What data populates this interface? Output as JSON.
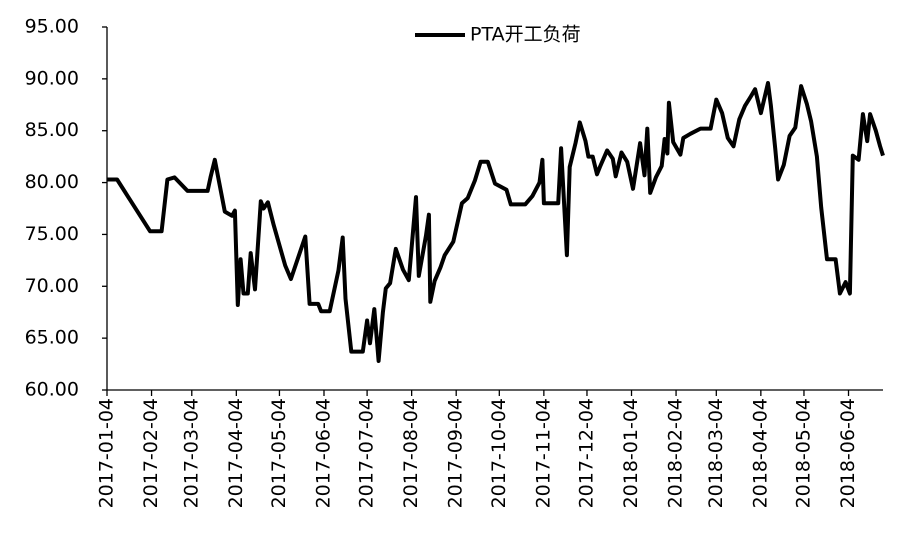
{
  "chart_data": {
    "type": "line",
    "series": [
      {
        "name": "PTA开工负荷",
        "color": "#000000",
        "x": [
          "2017-01-04",
          "2017-01-11",
          "2017-02-03",
          "2017-02-11",
          "2017-02-15",
          "2017-02-20",
          "2017-03-01",
          "2017-03-15",
          "2017-03-17",
          "2017-03-20",
          "2017-03-27",
          "2017-04-01",
          "2017-04-03",
          "2017-04-05",
          "2017-04-07",
          "2017-04-09",
          "2017-04-12",
          "2017-04-14",
          "2017-04-17",
          "2017-04-21",
          "2017-04-23",
          "2017-04-26",
          "2017-04-30",
          "2017-05-08",
          "2017-05-12",
          "2017-05-22",
          "2017-05-25",
          "2017-05-31",
          "2017-06-02",
          "2017-06-08",
          "2017-06-14",
          "2017-06-17",
          "2017-06-19",
          "2017-06-23",
          "2017-07-01",
          "2017-07-04",
          "2017-07-06",
          "2017-07-09",
          "2017-07-12",
          "2017-07-15",
          "2017-07-17",
          "2017-07-20",
          "2017-07-24",
          "2017-07-29",
          "2017-08-02",
          "2017-08-07",
          "2017-08-09",
          "2017-08-14",
          "2017-08-16",
          "2017-08-17",
          "2017-08-20",
          "2017-08-24",
          "2017-08-27",
          "2017-09-02",
          "2017-09-08",
          "2017-09-12",
          "2017-09-17",
          "2017-09-21",
          "2017-09-26",
          "2017-10-01",
          "2017-10-09",
          "2017-10-12",
          "2017-10-22",
          "2017-10-27",
          "2017-11-01",
          "2017-11-03",
          "2017-11-04",
          "2017-11-14",
          "2017-11-16",
          "2017-11-20",
          "2017-11-22",
          "2017-11-26",
          "2017-11-29",
          "2017-12-03",
          "2017-12-05",
          "2017-12-08",
          "2017-12-11",
          "2017-12-13",
          "2017-12-18",
          "2017-12-22",
          "2017-12-24",
          "2017-12-28",
          "2018-01-01",
          "2018-01-05",
          "2018-01-10",
          "2018-01-13",
          "2018-01-15",
          "2018-01-17",
          "2018-01-21",
          "2018-01-25",
          "2018-01-27",
          "2018-01-29",
          "2018-01-30",
          "2018-02-02",
          "2018-02-07",
          "2018-02-09",
          "2018-02-14",
          "2018-02-21",
          "2018-02-28",
          "2018-03-04",
          "2018-03-08",
          "2018-03-12",
          "2018-03-16",
          "2018-03-20",
          "2018-03-24",
          "2018-03-28",
          "2018-03-31",
          "2018-04-04",
          "2018-04-09",
          "2018-04-11",
          "2018-04-14",
          "2018-04-16",
          "2018-04-20",
          "2018-04-24",
          "2018-04-28",
          "2018-05-02",
          "2018-05-06",
          "2018-05-09",
          "2018-05-13",
          "2018-05-16",
          "2018-05-20",
          "2018-05-26",
          "2018-05-29",
          "2018-06-02",
          "2018-06-05",
          "2018-06-07",
          "2018-06-11",
          "2018-06-14",
          "2018-06-17",
          "2018-06-19",
          "2018-06-23",
          "2018-06-26",
          "2018-06-28"
        ],
        "values": [
          80.3,
          80.3,
          75.3,
          75.3,
          80.3,
          80.5,
          79.2,
          79.2,
          80.5,
          82.2,
          77.2,
          76.8,
          77.3,
          68.2,
          72.6,
          69.3,
          69.3,
          73.2,
          69.7,
          78.2,
          77.5,
          78.1,
          75.9,
          72.0,
          70.7,
          74.8,
          68.3,
          68.3,
          67.6,
          67.6,
          71.5,
          74.7,
          68.8,
          63.7,
          63.7,
          66.7,
          64.5,
          67.8,
          62.8,
          67.5,
          69.8,
          70.3,
          73.6,
          71.6,
          70.6,
          78.6,
          71.0,
          74.9,
          76.9,
          68.5,
          70.5,
          71.8,
          73.0,
          74.3,
          78.0,
          78.5,
          80.2,
          82.0,
          82.0,
          79.9,
          79.3,
          77.9,
          77.9,
          78.7,
          80.0,
          82.2,
          78.0,
          78.0,
          83.3,
          73.0,
          81.5,
          83.8,
          85.8,
          84.0,
          82.5,
          82.5,
          80.8,
          81.5,
          83.1,
          82.3,
          80.6,
          82.9,
          82.0,
          79.4,
          83.8,
          80.7,
          85.2,
          79.0,
          80.5,
          81.6,
          84.2,
          82.8,
          87.7,
          83.9,
          82.7,
          84.3,
          84.7,
          85.2,
          85.2,
          88.0,
          86.7,
          84.3,
          83.5,
          86.1,
          87.4,
          88.3,
          89.0,
          86.7,
          89.6,
          87.4,
          83.3,
          80.3,
          81.7,
          84.5,
          85.3,
          89.3,
          87.6,
          85.9,
          82.5,
          77.6,
          72.6,
          72.6,
          69.3,
          70.4,
          69.3,
          82.6,
          82.2,
          86.6,
          84.0,
          86.6,
          85.0,
          83.5,
          82.6
        ]
      }
    ],
    "xlim": [
      "2017-01-04",
      "2018-06-28"
    ],
    "xticks": [
      "2017-01-04",
      "2017-02-04",
      "2017-03-04",
      "2017-04-04",
      "2017-05-04",
      "2017-06-04",
      "2017-07-04",
      "2017-08-04",
      "2017-09-04",
      "2017-10-04",
      "2017-11-04",
      "2017-12-04",
      "2018-01-04",
      "2018-02-04",
      "2018-03-04",
      "2018-04-04",
      "2018-05-04",
      "2018-06-04"
    ],
    "ylim": [
      60,
      95
    ],
    "yticks": [
      {
        "value": 60,
        "label": "60.00"
      },
      {
        "value": 65,
        "label": "65.00"
      },
      {
        "value": 70,
        "label": "70.00"
      },
      {
        "value": 75,
        "label": "75.00"
      },
      {
        "value": 80,
        "label": "80.00"
      },
      {
        "value": 85,
        "label": "85.00"
      },
      {
        "value": 90,
        "label": "90.00"
      },
      {
        "value": 95,
        "label": "95.00"
      }
    ],
    "grid": false,
    "legend": "top"
  }
}
